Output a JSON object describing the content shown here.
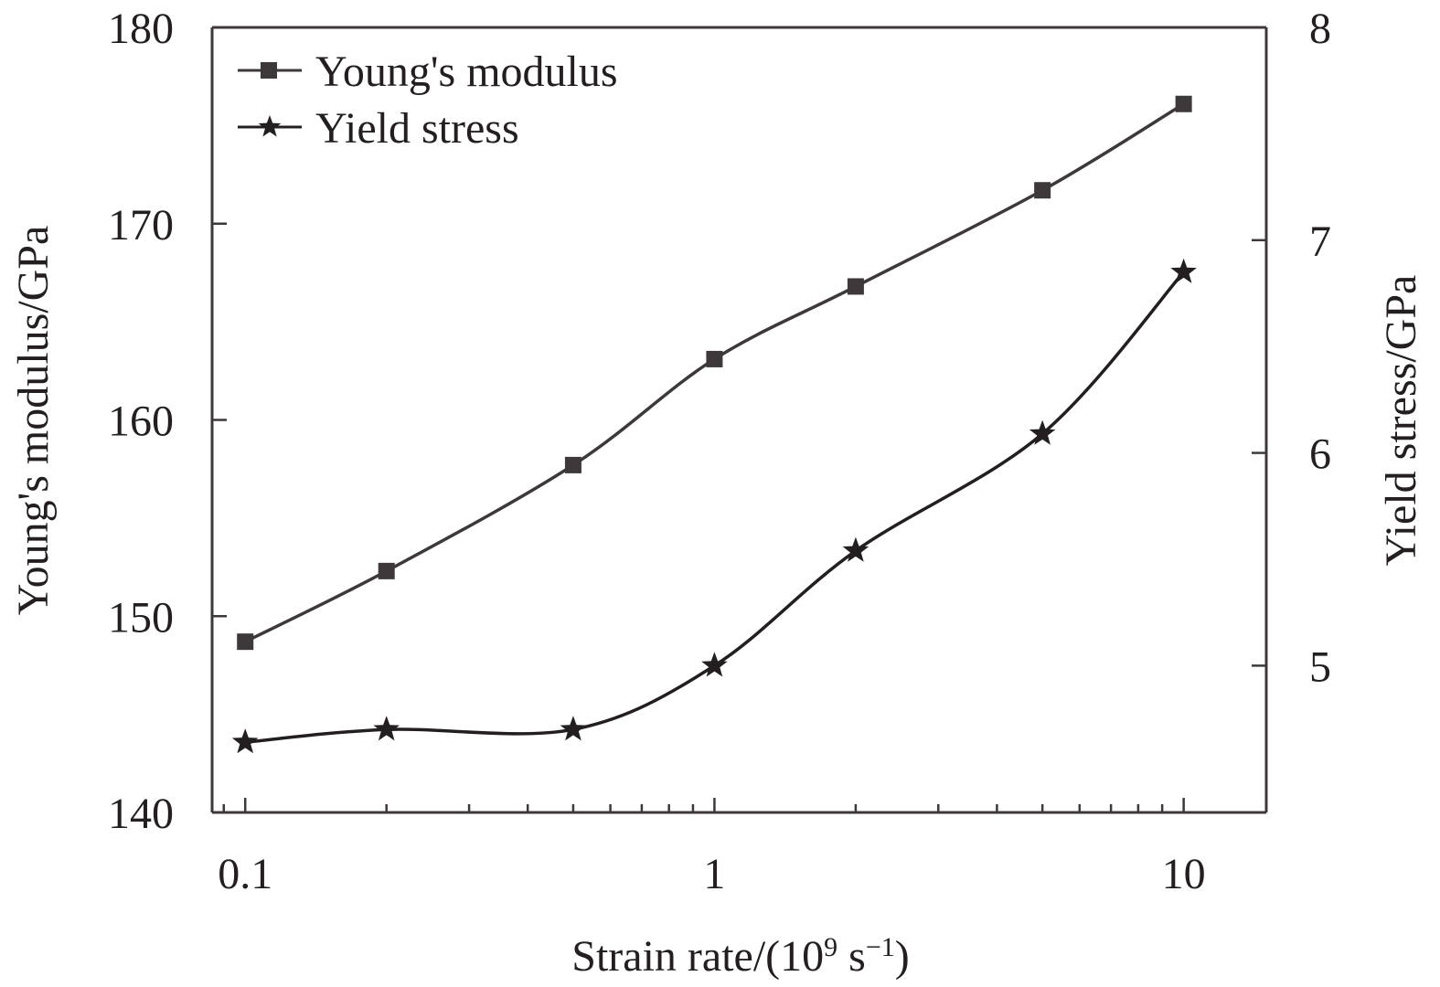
{
  "chart_data": {
    "type": "line",
    "title": "",
    "xlabel": "Strain rate/(10",
    "xlabel_sup1": "9",
    "xlabel_mid": " s",
    "xlabel_sup2": "−1",
    "xlabel_end": ")",
    "ylabel": "Young's modulus/GPa",
    "y2label": "Yield stress/GPa",
    "xscale": "log",
    "xlim": [
      0.085,
      15
    ],
    "ylim": [
      140,
      180
    ],
    "y2lim": [
      4.31,
      8
    ],
    "x": [
      0.1,
      0.2,
      0.5,
      1,
      2,
      5,
      10
    ],
    "xticks": [
      0.1,
      1,
      10
    ],
    "xtick_labels": [
      "0.1",
      "1",
      "10"
    ],
    "yticks": [
      140,
      150,
      160,
      170,
      180
    ],
    "ytick_labels": [
      "140",
      "150",
      "160",
      "170",
      "180"
    ],
    "y2ticks": [
      5,
      6,
      7,
      8
    ],
    "y2tick_labels": [
      "5",
      "6",
      "7",
      "8"
    ],
    "grid": false,
    "legend_position": "top-left",
    "series": [
      {
        "name": "Young's modulus",
        "axis": "left",
        "marker": "square",
        "color": "#3d393a",
        "values": [
          148.7,
          152.3,
          157.7,
          163.1,
          166.8,
          171.7,
          176.1
        ]
      },
      {
        "name": "Yield stress",
        "axis": "right",
        "marker": "star",
        "color": "#231f20",
        "values": [
          4.64,
          4.7,
          4.7,
          5.0,
          5.54,
          6.09,
          6.85
        ]
      }
    ]
  }
}
